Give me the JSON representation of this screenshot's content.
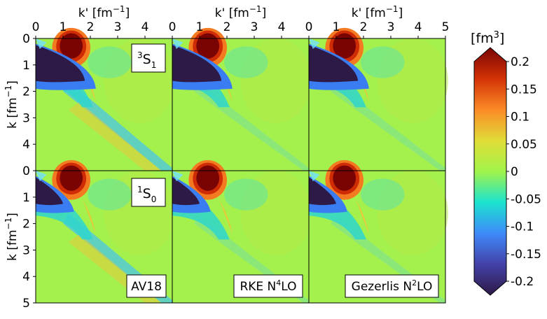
{
  "chart_data": {
    "type": "heatmap",
    "xlabel": "k' [fm",
    "xlabel_sup": "−1",
    "xlabel_close": "]",
    "ylabel": "k [fm",
    "ylabel_sup": "−1",
    "ylabel_close": "]",
    "x_ticks": [
      "0",
      "1",
      "2",
      "3",
      "4"
    ],
    "x_ticks_last": [
      "0",
      "1",
      "2",
      "3",
      "4",
      "5"
    ],
    "y_ticks_top": [
      "0",
      "1",
      "2",
      "3",
      "4"
    ],
    "y_ticks_bottom": [
      "0",
      "1",
      "2",
      "3",
      "4",
      "5"
    ],
    "xlim": [
      0,
      5
    ],
    "ylim": [
      0,
      5
    ],
    "rows": [
      {
        "name_base": "S",
        "name_sup": "3",
        "name_sub": "1"
      },
      {
        "name_base": "S",
        "name_sup": "1",
        "name_sub": "0"
      }
    ],
    "columns": [
      {
        "name": "AV18",
        "name_base": "AV18",
        "name_sup": "",
        "name_tail": ""
      },
      {
        "name": "RKE N4LO",
        "name_base": "RKE N",
        "name_sup": "4",
        "name_tail": "LO"
      },
      {
        "name": "Gezerlis N2LO",
        "name_base": "Gezerlis N",
        "name_sup": "2",
        "name_tail": "LO"
      }
    ],
    "colorbar": {
      "label": "[fm",
      "label_sup": "3",
      "label_close": "]",
      "range": [
        -0.2,
        0.2
      ],
      "ticks": [
        "0.2",
        "0.15",
        "0.1",
        "0.05",
        "0",
        "-0.05",
        "-0.1",
        "-0.15",
        "-0.2"
      ],
      "tick_values": [
        0.2,
        0.15,
        0.1,
        0.05,
        0,
        -0.05,
        -0.1,
        -0.15,
        -0.2
      ],
      "colormap": [
        "#2e1a46",
        "#4341a8",
        "#3e8bfa",
        "#1ce3cf",
        "#a0f44a",
        "#e1dc37",
        "#fb8a27",
        "#d33306",
        "#7a0403"
      ]
    }
  }
}
